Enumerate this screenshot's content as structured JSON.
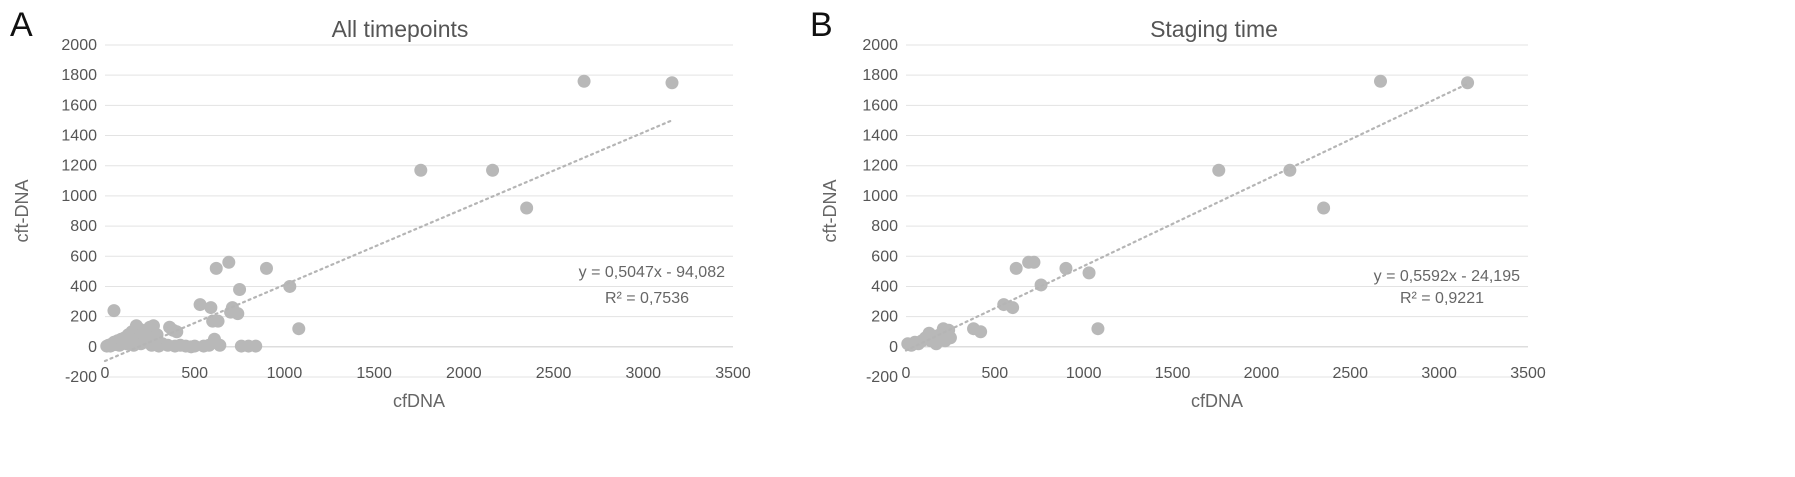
{
  "chart_data": [
    {
      "type": "scatter",
      "panel_label": "A",
      "title": "All timepoints",
      "xlabel": "cfDNA",
      "ylabel": "cft-DNA",
      "xlim": [
        0,
        3500
      ],
      "ylim": [
        -200,
        2000
      ],
      "x_ticks": [
        0,
        500,
        1000,
        1500,
        2000,
        2500,
        3000,
        3500
      ],
      "y_ticks": [
        -200,
        0,
        200,
        400,
        600,
        800,
        1000,
        1200,
        1400,
        1600,
        1800,
        2000
      ],
      "grid": true,
      "trendline": {
        "type": "linear",
        "slope": 0.5047,
        "intercept": -94.082,
        "x_range": [
          0,
          3150
        ],
        "equation_label": "y = 0,5047x - 94,082",
        "r2_label": "R² = 0,7536"
      },
      "points": [
        [
          10,
          5
        ],
        [
          20,
          10
        ],
        [
          30,
          5
        ],
        [
          40,
          20
        ],
        [
          50,
          30
        ],
        [
          60,
          15
        ],
        [
          50,
          240
        ],
        [
          70,
          40
        ],
        [
          80,
          10
        ],
        [
          90,
          50
        ],
        [
          100,
          30
        ],
        [
          110,
          60
        ],
        [
          120,
          20
        ],
        [
          130,
          80
        ],
        [
          140,
          40
        ],
        [
          150,
          100
        ],
        [
          160,
          10
        ],
        [
          170,
          70
        ],
        [
          175,
          140
        ],
        [
          185,
          55
        ],
        [
          190,
          120
        ],
        [
          200,
          20
        ],
        [
          210,
          90
        ],
        [
          220,
          30
        ],
        [
          230,
          110
        ],
        [
          240,
          60
        ],
        [
          250,
          130
        ],
        [
          260,
          10
        ],
        [
          270,
          140
        ],
        [
          280,
          40
        ],
        [
          290,
          80
        ],
        [
          300,
          5
        ],
        [
          320,
          20
        ],
        [
          350,
          10
        ],
        [
          360,
          130
        ],
        [
          380,
          110
        ],
        [
          400,
          100
        ],
        [
          390,
          5
        ],
        [
          420,
          10
        ],
        [
          450,
          5
        ],
        [
          480,
          0
        ],
        [
          500,
          5
        ],
        [
          530,
          280
        ],
        [
          550,
          5
        ],
        [
          580,
          10
        ],
        [
          590,
          260
        ],
        [
          600,
          170
        ],
        [
          610,
          50
        ],
        [
          620,
          520
        ],
        [
          630,
          170
        ],
        [
          640,
          10
        ],
        [
          690,
          560
        ],
        [
          700,
          230
        ],
        [
          710,
          260
        ],
        [
          740,
          220
        ],
        [
          750,
          380
        ],
        [
          760,
          5
        ],
        [
          800,
          5
        ],
        [
          840,
          5
        ],
        [
          900,
          520
        ],
        [
          1030,
          400
        ],
        [
          1080,
          120
        ],
        [
          1760,
          1170
        ],
        [
          2160,
          1170
        ],
        [
          2350,
          920
        ],
        [
          2670,
          1760
        ],
        [
          3160,
          1750
        ]
      ]
    },
    {
      "type": "scatter",
      "panel_label": "B",
      "title": "Staging time",
      "xlabel": "cfDNA",
      "ylabel": "cft-DNA",
      "xlim": [
        0,
        3500
      ],
      "ylim": [
        -200,
        2000
      ],
      "x_ticks": [
        0,
        500,
        1000,
        1500,
        2000,
        2500,
        3000,
        3500
      ],
      "y_ticks": [
        -200,
        0,
        200,
        400,
        600,
        800,
        1000,
        1200,
        1400,
        1600,
        1800,
        2000
      ],
      "grid": true,
      "trendline": {
        "type": "linear",
        "slope": 0.5592,
        "intercept": -24.195,
        "x_range": [
          0,
          3150
        ],
        "equation_label": "y = 0,5592x - 24,195",
        "r2_label": "R² = 0,9221"
      },
      "points": [
        [
          10,
          20
        ],
        [
          30,
          10
        ],
        [
          50,
          30
        ],
        [
          70,
          20
        ],
        [
          90,
          40
        ],
        [
          110,
          60
        ],
        [
          130,
          90
        ],
        [
          140,
          40
        ],
        [
          160,
          70
        ],
        [
          170,
          20
        ],
        [
          190,
          80
        ],
        [
          200,
          60
        ],
        [
          210,
          120
        ],
        [
          220,
          40
        ],
        [
          240,
          110
        ],
        [
          250,
          60
        ],
        [
          380,
          120
        ],
        [
          420,
          100
        ],
        [
          550,
          280
        ],
        [
          600,
          260
        ],
        [
          620,
          520
        ],
        [
          690,
          560
        ],
        [
          720,
          560
        ],
        [
          760,
          410
        ],
        [
          900,
          520
        ],
        [
          1030,
          490
        ],
        [
          1080,
          120
        ],
        [
          1760,
          1170
        ],
        [
          2160,
          1170
        ],
        [
          2350,
          920
        ],
        [
          2670,
          1760
        ],
        [
          3160,
          1750
        ]
      ]
    }
  ]
}
